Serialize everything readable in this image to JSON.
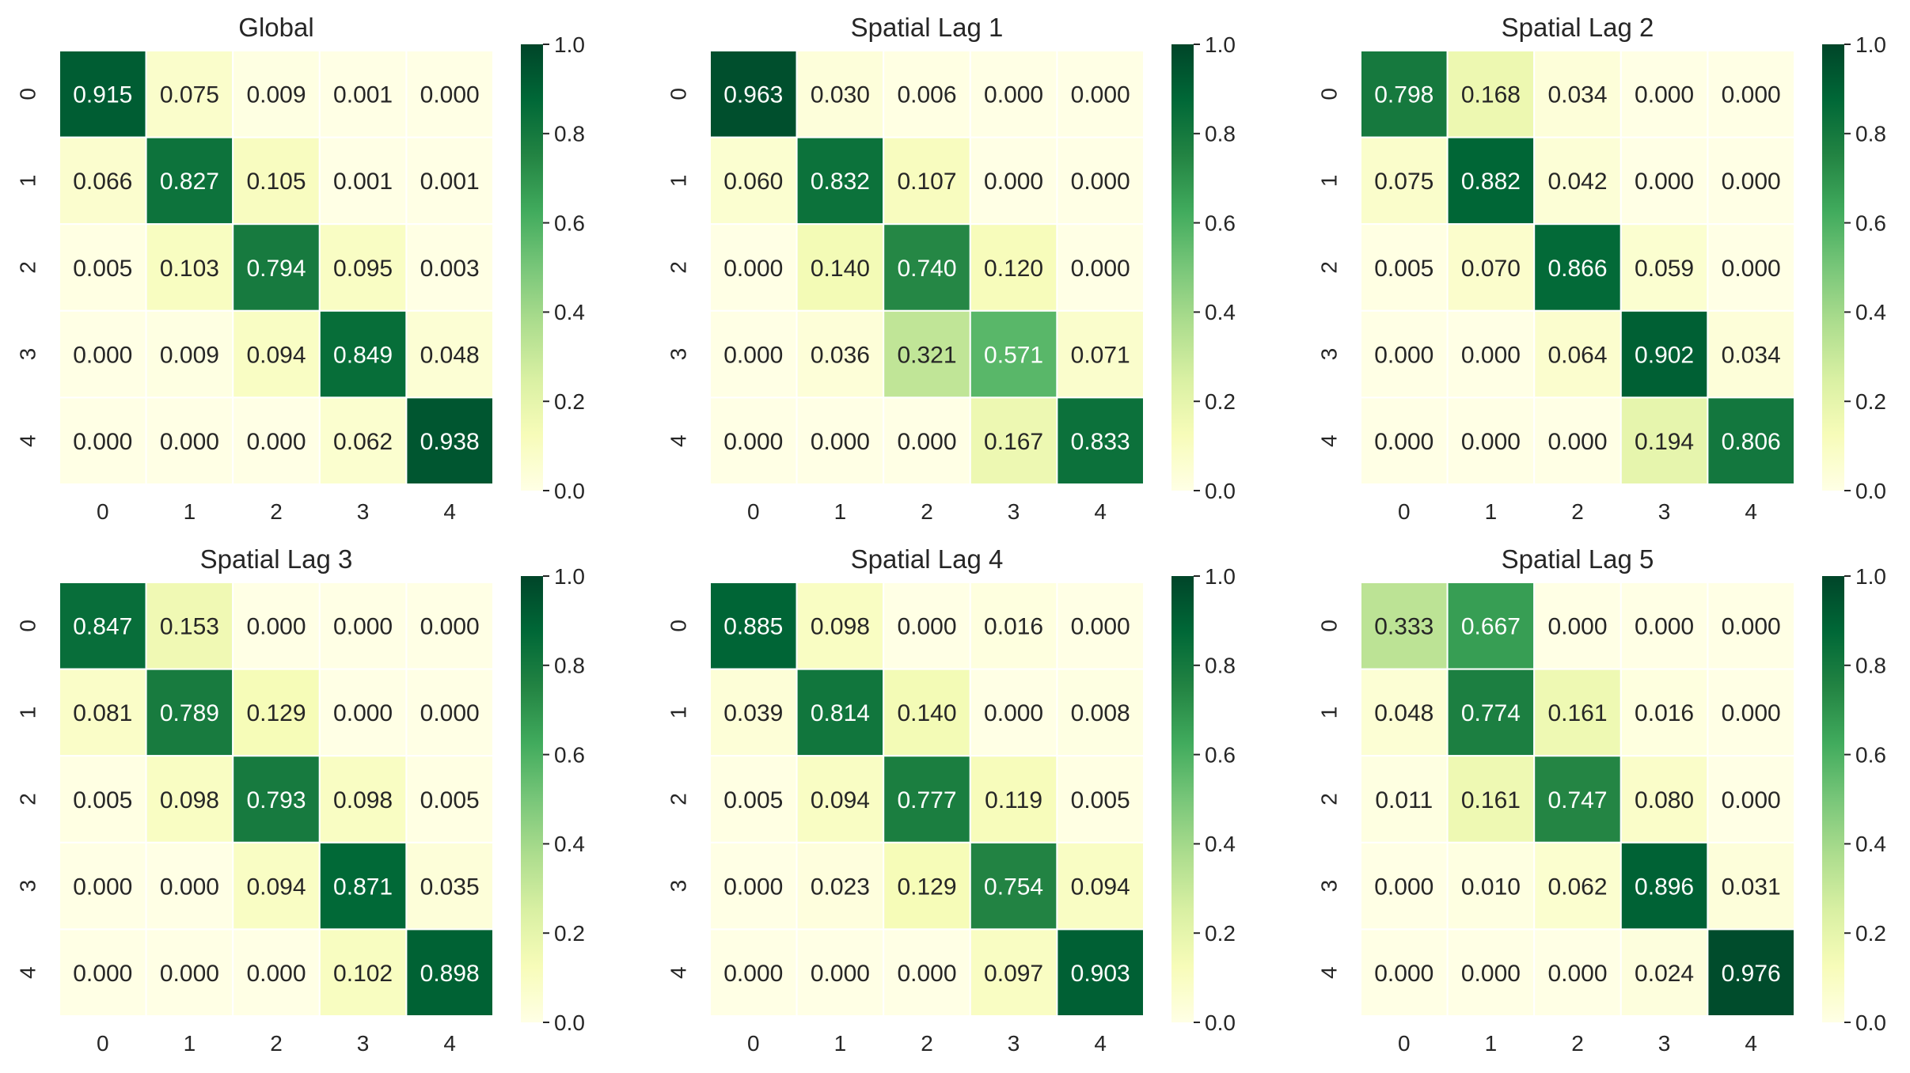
{
  "figure": {
    "colorscale": [
      "#ffffe5",
      "#f7fcb9",
      "#d9f0a3",
      "#addd8e",
      "#78c679",
      "#41ab5d",
      "#238443",
      "#006837",
      "#004529"
    ],
    "text_dark": "#262626",
    "text_light": "#ffffff",
    "cell_border": "#ffffff"
  },
  "chart_data": [
    {
      "type": "heatmap",
      "title": "Global",
      "x_ticks": [
        "0",
        "1",
        "2",
        "3",
        "4"
      ],
      "y_ticks": [
        "0",
        "1",
        "2",
        "3",
        "4"
      ],
      "values": [
        [
          0.915,
          0.075,
          0.009,
          0.001,
          0.0
        ],
        [
          0.066,
          0.827,
          0.105,
          0.001,
          0.001
        ],
        [
          0.005,
          0.103,
          0.794,
          0.095,
          0.003
        ],
        [
          0.0,
          0.009,
          0.094,
          0.849,
          0.048
        ],
        [
          0.0,
          0.0,
          0.0,
          0.062,
          0.938
        ]
      ],
      "colorbar": {
        "min": 0.0,
        "max": 1.0,
        "ticks": [
          "0.0",
          "0.2",
          "0.4",
          "0.6",
          "0.8",
          "1.0"
        ]
      }
    },
    {
      "type": "heatmap",
      "title": "Spatial Lag 1",
      "x_ticks": [
        "0",
        "1",
        "2",
        "3",
        "4"
      ],
      "y_ticks": [
        "0",
        "1",
        "2",
        "3",
        "4"
      ],
      "values": [
        [
          0.963,
          0.03,
          0.006,
          0.0,
          0.0
        ],
        [
          0.06,
          0.832,
          0.107,
          0.0,
          0.0
        ],
        [
          0.0,
          0.14,
          0.74,
          0.12,
          0.0
        ],
        [
          0.0,
          0.036,
          0.321,
          0.571,
          0.071
        ],
        [
          0.0,
          0.0,
          0.0,
          0.167,
          0.833
        ]
      ],
      "colorbar": {
        "min": 0.0,
        "max": 1.0,
        "ticks": [
          "0.0",
          "0.2",
          "0.4",
          "0.6",
          "0.8",
          "1.0"
        ]
      }
    },
    {
      "type": "heatmap",
      "title": "Spatial Lag 2",
      "x_ticks": [
        "0",
        "1",
        "2",
        "3",
        "4"
      ],
      "y_ticks": [
        "0",
        "1",
        "2",
        "3",
        "4"
      ],
      "values": [
        [
          0.798,
          0.168,
          0.034,
          0.0,
          0.0
        ],
        [
          0.075,
          0.882,
          0.042,
          0.0,
          0.0
        ],
        [
          0.005,
          0.07,
          0.866,
          0.059,
          0.0
        ],
        [
          0.0,
          0.0,
          0.064,
          0.902,
          0.034
        ],
        [
          0.0,
          0.0,
          0.0,
          0.194,
          0.806
        ]
      ],
      "colorbar": {
        "min": 0.0,
        "max": 1.0,
        "ticks": [
          "0.0",
          "0.2",
          "0.4",
          "0.6",
          "0.8",
          "1.0"
        ]
      }
    },
    {
      "type": "heatmap",
      "title": "Spatial Lag 3",
      "x_ticks": [
        "0",
        "1",
        "2",
        "3",
        "4"
      ],
      "y_ticks": [
        "0",
        "1",
        "2",
        "3",
        "4"
      ],
      "values": [
        [
          0.847,
          0.153,
          0.0,
          0.0,
          0.0
        ],
        [
          0.081,
          0.789,
          0.129,
          0.0,
          0.0
        ],
        [
          0.005,
          0.098,
          0.793,
          0.098,
          0.005
        ],
        [
          0.0,
          0.0,
          0.094,
          0.871,
          0.035
        ],
        [
          0.0,
          0.0,
          0.0,
          0.102,
          0.898
        ]
      ],
      "colorbar": {
        "min": 0.0,
        "max": 1.0,
        "ticks": [
          "0.0",
          "0.2",
          "0.4",
          "0.6",
          "0.8",
          "1.0"
        ]
      }
    },
    {
      "type": "heatmap",
      "title": "Spatial Lag 4",
      "x_ticks": [
        "0",
        "1",
        "2",
        "3",
        "4"
      ],
      "y_ticks": [
        "0",
        "1",
        "2",
        "3",
        "4"
      ],
      "values": [
        [
          0.885,
          0.098,
          0.0,
          0.016,
          0.0
        ],
        [
          0.039,
          0.814,
          0.14,
          0.0,
          0.008
        ],
        [
          0.005,
          0.094,
          0.777,
          0.119,
          0.005
        ],
        [
          0.0,
          0.023,
          0.129,
          0.754,
          0.094
        ],
        [
          0.0,
          0.0,
          0.0,
          0.097,
          0.903
        ]
      ],
      "colorbar": {
        "min": 0.0,
        "max": 1.0,
        "ticks": [
          "0.0",
          "0.2",
          "0.4",
          "0.6",
          "0.8",
          "1.0"
        ]
      }
    },
    {
      "type": "heatmap",
      "title": "Spatial Lag 5",
      "x_ticks": [
        "0",
        "1",
        "2",
        "3",
        "4"
      ],
      "y_ticks": [
        "0",
        "1",
        "2",
        "3",
        "4"
      ],
      "values": [
        [
          0.333,
          0.667,
          0.0,
          0.0,
          0.0
        ],
        [
          0.048,
          0.774,
          0.161,
          0.016,
          0.0
        ],
        [
          0.011,
          0.161,
          0.747,
          0.08,
          0.0
        ],
        [
          0.0,
          0.01,
          0.062,
          0.896,
          0.031
        ],
        [
          0.0,
          0.0,
          0.0,
          0.024,
          0.976
        ]
      ],
      "colorbar": {
        "min": 0.0,
        "max": 1.0,
        "ticks": [
          "0.0",
          "0.2",
          "0.4",
          "0.6",
          "0.8",
          "1.0"
        ]
      }
    }
  ]
}
